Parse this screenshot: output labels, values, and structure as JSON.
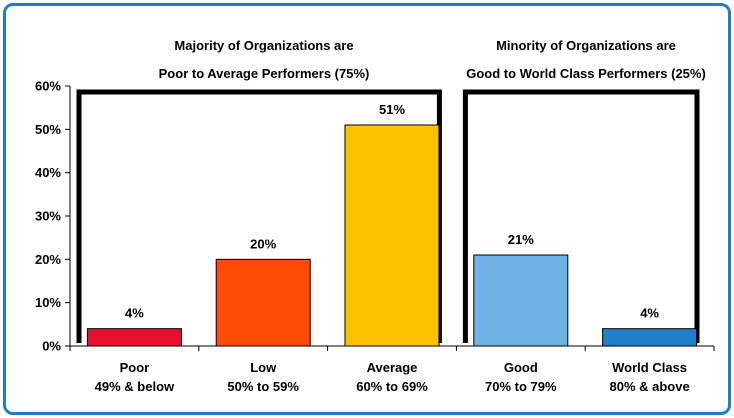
{
  "chart_data": {
    "type": "bar",
    "categories": [
      {
        "line1": "Poor",
        "line2": "49% & below"
      },
      {
        "line1": "Low",
        "line2": "50% to 59%"
      },
      {
        "line1": "Average",
        "line2": "60% to 69%"
      },
      {
        "line1": "Good",
        "line2": "70% to 79%"
      },
      {
        "line1": "World Class",
        "line2": "80% & above"
      }
    ],
    "values": [
      4,
      20,
      51,
      21,
      4
    ],
    "data_labels": [
      "4%",
      "20%",
      "51%",
      "21%",
      "4%"
    ],
    "colors": [
      "#e8102a",
      "#ff4a05",
      "#ffc000",
      "#6fb2e6",
      "#1f7ec8"
    ],
    "ylim": [
      0,
      60
    ],
    "yticks": [
      "0%",
      "10%",
      "20%",
      "30%",
      "40%",
      "50%",
      "60%"
    ],
    "ytick_values": [
      0,
      10,
      20,
      30,
      40,
      50,
      60
    ],
    "grid": false,
    "groups": [
      {
        "line1": "Majority of Organizations are",
        "line2": "Poor to Average Performers (75%)",
        "first_category": 0,
        "last_category": 2
      },
      {
        "line1": "Minority of Organizations are",
        "line2": "Good to World Class Performers (25%)",
        "first_category": 3,
        "last_category": 4
      }
    ]
  },
  "colors": {
    "frame_border": "#1f7ec8"
  }
}
